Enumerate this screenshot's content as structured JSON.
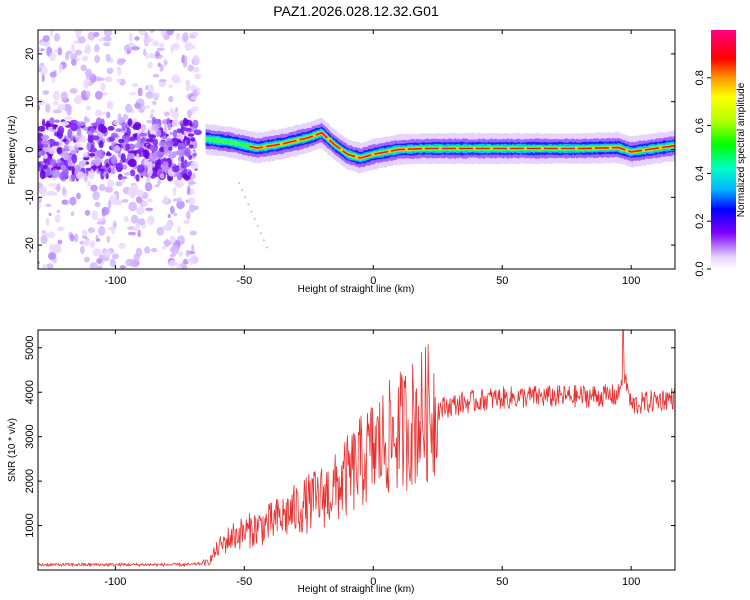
{
  "title": "PAZ1.2026.028.12.32.G01",
  "chart_data": [
    {
      "type": "heatmap",
      "name": "spectrogram",
      "xlabel": "Height of straight line (km)",
      "ylabel": "Frequency (Hz)",
      "xlim": [
        -130,
        117
      ],
      "ylim": [
        -25,
        25
      ],
      "xticks": [
        -100,
        -50,
        0,
        50,
        100
      ],
      "yticks": [
        -20,
        -10,
        0,
        10,
        20
      ],
      "colorbar": {
        "label": "Normalized spectral amplitude",
        "range": [
          0,
          1
        ],
        "ticks": [
          "0.0",
          "0.2",
          "0.4",
          "0.6",
          "0.8"
        ]
      },
      "ridge": {
        "x": [
          -65,
          -55,
          -45,
          -35,
          -25,
          -20,
          -15,
          -10,
          -5,
          0,
          10,
          20,
          50,
          80,
          95,
          100,
          117
        ],
        "freq": [
          2.2,
          1.5,
          0.3,
          1.2,
          2.5,
          3.5,
          1.0,
          -1.0,
          -1.8,
          -1.0,
          0.0,
          0.2,
          0.2,
          0.2,
          0.4,
          -0.5,
          0.8
        ]
      },
      "noise_region_x": [
        -130,
        -68
      ]
    },
    {
      "type": "line",
      "name": "snr",
      "xlabel": "Height of straight line (km)",
      "ylabel": "SNR (10 * v/v)",
      "xlim": [
        -130,
        117
      ],
      "ylim": [
        0,
        5400
      ],
      "xticks": [
        -100,
        -50,
        0,
        50,
        100
      ],
      "yticks": [
        1000,
        2000,
        3000,
        4000,
        5000
      ],
      "color": "#e83030",
      "series": [
        {
          "name": "SNR",
          "x": [
            -130,
            -110,
            -90,
            -70,
            -64,
            -60,
            -55,
            -50,
            -45,
            -40,
            -35,
            -30,
            -25,
            -20,
            -15,
            -10,
            -5,
            0,
            5,
            10,
            15,
            20,
            25,
            30,
            35,
            40,
            45,
            50,
            55,
            60,
            70,
            80,
            90,
            95,
            97,
            100,
            110,
            117
          ],
          "y": [
            120,
            120,
            120,
            120,
            170,
            500,
            750,
            850,
            950,
            1050,
            1200,
            1350,
            1500,
            1650,
            1800,
            2100,
            2400,
            2700,
            2900,
            3100,
            3300,
            3500,
            3620,
            3700,
            3760,
            3800,
            3850,
            3870,
            3880,
            3900,
            3900,
            3910,
            3920,
            3930,
            4500,
            3700,
            3820,
            3880
          ]
        }
      ]
    }
  ]
}
